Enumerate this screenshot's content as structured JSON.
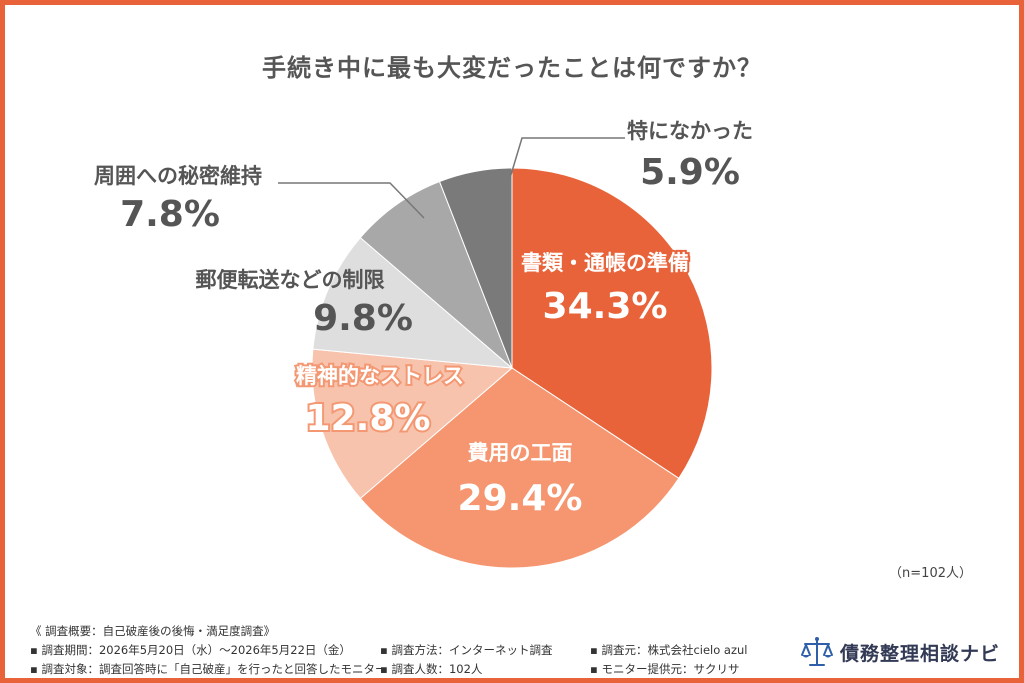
{
  "title": "手続き中に最も大変だったことは何ですか？",
  "sample_note": "（n=102人）",
  "chart_data": {
    "type": "pie",
    "title": "手続き中に最も大変だったことは何ですか？",
    "slices": [
      {
        "label": "書類・通帳の準備",
        "value": 34.3,
        "display": "34.3%",
        "color": "#e8633a"
      },
      {
        "label": "費用の工面",
        "value": 29.4,
        "display": "29.4%",
        "color": "#f59670"
      },
      {
        "label": "精神的なストレス",
        "value": 12.8,
        "display": "12.8%",
        "color": "#f8c3ad"
      },
      {
        "label": "郵便転送などの制限",
        "value": 9.8,
        "display": "9.8%",
        "color": "#dedede"
      },
      {
        "label": "周囲への秘密維持",
        "value": 7.8,
        "display": "7.8%",
        "color": "#a8a8a8"
      },
      {
        "label": "特になかった",
        "value": 5.9,
        "display": "5.9%",
        "color": "#7a7a7a"
      }
    ],
    "start": "12 o'clock",
    "direction": "clockwise"
  },
  "footer": {
    "heading": "《 調査概要：自己破産後の後悔・満足度調査》",
    "row1": [
      "▪ 調査期間：2026年5月20日（水）〜2026年5月22日（金）",
      "▪ 調査方法：インターネット調査",
      "▪ 調査元：株式会社cielo azul"
    ],
    "row2": [
      "▪ 調査対象：調査回答時に「自己破産」を行ったと回答したモニター",
      "▪ 調査人数：102人",
      "▪ モニター提供元：サクリサ"
    ]
  },
  "logo": {
    "text": "債務整理相談ナビ",
    "icon": "scales-icon",
    "color": "#2e5fa8"
  }
}
